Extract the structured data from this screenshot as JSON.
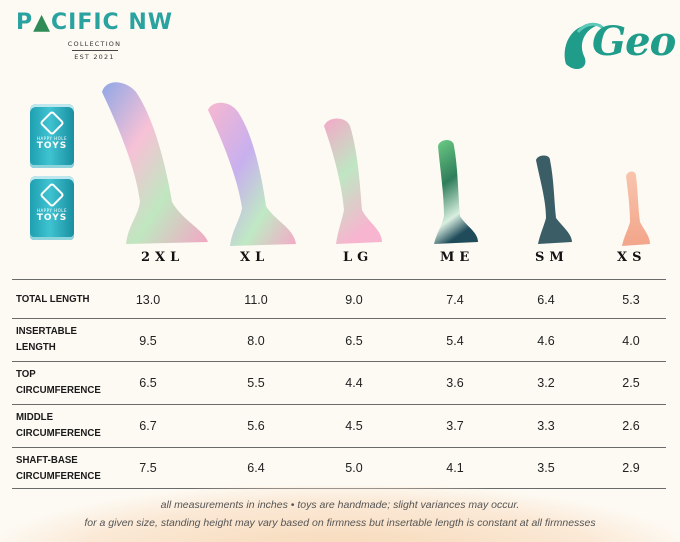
{
  "brand": {
    "name_left": "P",
    "name_right": "CIFIC NW",
    "tree_glyph": "▲",
    "collection": "COLLECTION",
    "est": "EST 2021"
  },
  "geo_logo": {
    "text": "Geo"
  },
  "cans": [
    {
      "line1": "HAPPY HOLE",
      "line2": "TOYS"
    },
    {
      "line1": "HAPPY HOLE",
      "line2": "TOYS"
    }
  ],
  "sizes": [
    "2XL",
    "XL",
    "LG",
    "ME",
    "SM",
    "XS"
  ],
  "rows": [
    {
      "label": [
        "TOTAL LENGTH"
      ],
      "values": [
        "13.0",
        "11.0",
        "9.0",
        "7.4",
        "6.4",
        "5.3"
      ]
    },
    {
      "label": [
        "INSERTABLE",
        "LENGTH"
      ],
      "values": [
        "9.5",
        "8.0",
        "6.5",
        "5.4",
        "4.6",
        "4.0"
      ]
    },
    {
      "label": [
        "TOP",
        "CIRCUMFERENCE"
      ],
      "values": [
        "6.5",
        "5.5",
        "4.4",
        "3.6",
        "3.2",
        "2.5"
      ]
    },
    {
      "label": [
        "MIDDLE",
        "CIRCUMFERENCE"
      ],
      "values": [
        "6.7",
        "5.6",
        "4.5",
        "3.7",
        "3.3",
        "2.6"
      ]
    },
    {
      "label": [
        "SHAFT-BASE",
        "CIRCUMFERENCE"
      ],
      "values": [
        "7.5",
        "6.4",
        "5.0",
        "4.1",
        "3.5",
        "2.9"
      ]
    }
  ],
  "footer": {
    "line1": "all measurements in inches • toys are handmade; slight variances may occur.",
    "line2": "for a given size, standing height may vary based on firmness but insertable length is constant at all firmnesses"
  },
  "colors": {
    "teal": "#2aa3a0",
    "pastel_pink": "#f4a3c4",
    "pastel_green": "#b9e6b4",
    "dark_green": "#1f5c45",
    "slate": "#3a5a66",
    "peach": "#f6b89a"
  }
}
